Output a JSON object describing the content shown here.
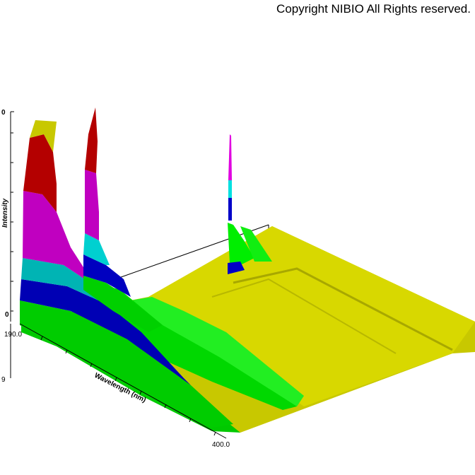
{
  "copyright": "Copyright NIBIO All Rights reserved.",
  "chart_data": {
    "type": "surface-3d",
    "x_axis": {
      "label": "Wavelength (nm)",
      "range": [
        190.0,
        400.0
      ],
      "tick_labels": [
        "190.0",
        "400.0"
      ]
    },
    "z_axis": {
      "label": "Intensity",
      "tick_labels": [
        "0",
        "0"
      ]
    },
    "y_axis": {
      "tick_labels": [
        "9"
      ]
    },
    "color_bands": [
      "#d0d000",
      "#b00000",
      "#c000c0",
      "#00b8b8",
      "#0000b8",
      "#00d000",
      "#d4d400"
    ],
    "peaks": [
      {
        "position": "front",
        "wavelength_nm": 195,
        "relative_height": 0.98
      },
      {
        "position": "second",
        "wavelength_nm": 195,
        "relative_height": 0.94
      },
      {
        "position": "rear",
        "wavelength_nm": 195,
        "relative_height": 0.86
      }
    ],
    "grid": false,
    "legend": "none"
  }
}
